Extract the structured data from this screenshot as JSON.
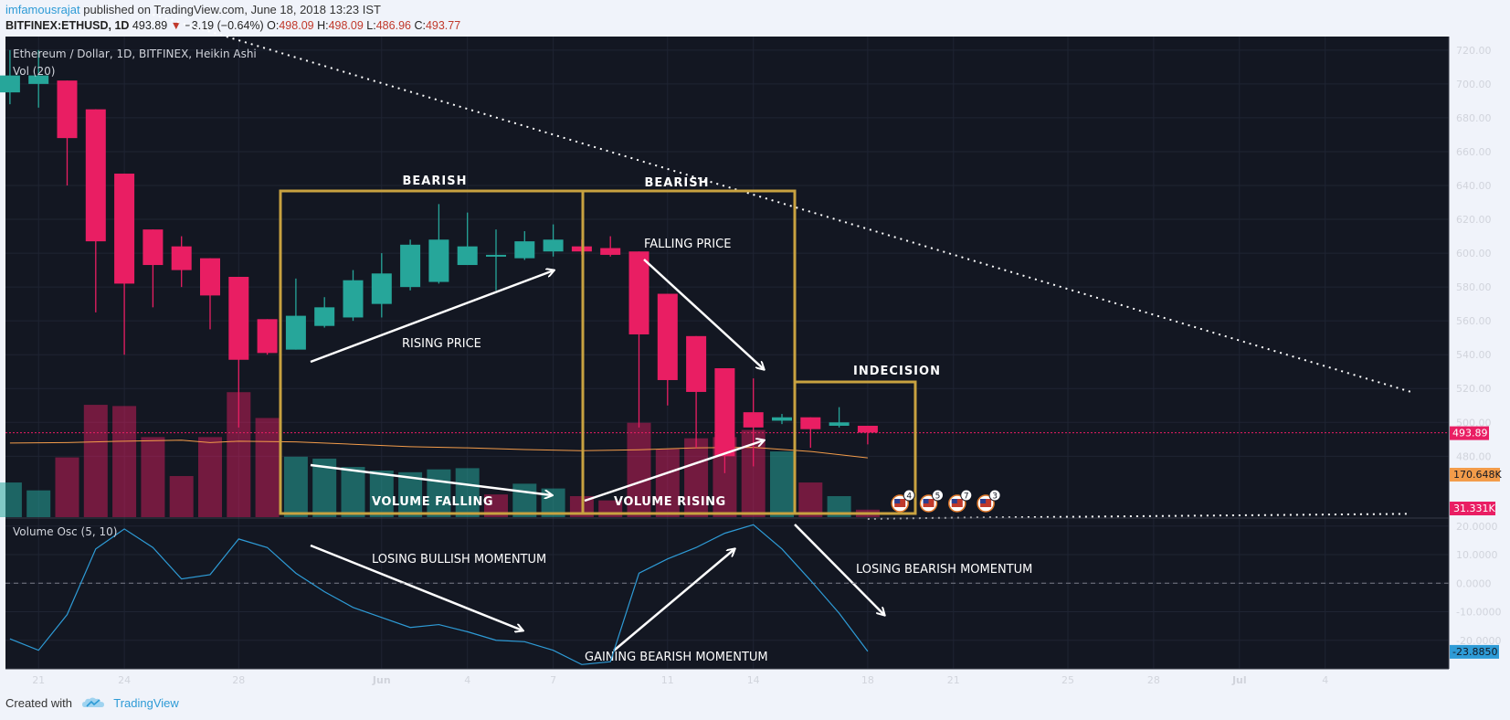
{
  "header": {
    "author": "imfamousrajat",
    "published": "published on TradingView.com, June 18, 2018 13:23 IST",
    "symbol": "BITFINEX:ETHUSD, 1D",
    "last": "493.89",
    "change_icon": "down-triangle-icon",
    "change": "−3.19 (−0.64%)",
    "o_label": "O:",
    "o": "498.09",
    "h_label": "H:",
    "h": "498.09",
    "l_label": "L:",
    "l": "486.96",
    "c_label": "C:",
    "c": "493.77"
  },
  "footer": {
    "created_with": "Created with",
    "brand": "TradingView",
    "logo_icon": "tradingview-cloud-icon"
  },
  "colors": {
    "background": "#131722",
    "bull": "#26a69a",
    "bear": "#e91e63",
    "box": "#c8a240",
    "osc_line": "#2e9bd6",
    "vol_ma": "#f39c4a",
    "price_line": "#e91e63"
  },
  "chart_data": [
    {
      "type": "candlestick",
      "title": "Ethereum / Dollar, 1D, BITFINEX, Heikin Ashi",
      "ylim": [
        444,
        728
      ],
      "y_ticks": [
        "720.00",
        "700.00",
        "680.00",
        "660.00",
        "640.00",
        "620.00",
        "600.00",
        "580.00",
        "560.00",
        "540.00",
        "520.00",
        "500.00",
        "480.00"
      ],
      "x_tick_labels": [
        "21",
        "24",
        "28",
        "Jun",
        "4",
        "7",
        "11",
        "14",
        "18",
        "21",
        "25",
        "28",
        "Jul",
        "4"
      ],
      "x_tick_days": [
        -11,
        -8,
        -4,
        1,
        4,
        7,
        11,
        14,
        18,
        21,
        25,
        28,
        31,
        34
      ],
      "candles": [
        {
          "d": -12,
          "o": 695,
          "h": 720,
          "l": 688,
          "c": 705
        },
        {
          "d": -11,
          "o": 700,
          "h": 720,
          "l": 686,
          "c": 705
        },
        {
          "d": -10,
          "o": 702,
          "h": 702,
          "l": 640,
          "c": 668
        },
        {
          "d": -9,
          "o": 685,
          "h": 685,
          "l": 565,
          "c": 607
        },
        {
          "d": -8,
          "o": 647,
          "h": 647,
          "l": 540,
          "c": 582
        },
        {
          "d": -7,
          "o": 614,
          "h": 614,
          "l": 568,
          "c": 593
        },
        {
          "d": -6,
          "o": 604,
          "h": 610,
          "l": 580,
          "c": 590
        },
        {
          "d": -5,
          "o": 597,
          "h": 597,
          "l": 555,
          "c": 575
        },
        {
          "d": -4,
          "o": 586,
          "h": 586,
          "l": 497,
          "c": 537
        },
        {
          "d": -3,
          "o": 561,
          "h": 561,
          "l": 540,
          "c": 541
        },
        {
          "d": -2,
          "o": 543,
          "h": 585,
          "l": 543,
          "c": 563
        },
        {
          "d": -1,
          "o": 557,
          "h": 574,
          "l": 556,
          "c": 568
        },
        {
          "d": 0,
          "o": 562,
          "h": 590,
          "l": 560,
          "c": 584
        },
        {
          "d": 1,
          "o": 570,
          "h": 600,
          "l": 562,
          "c": 588
        },
        {
          "d": 2,
          "o": 580,
          "h": 608,
          "l": 578,
          "c": 605
        },
        {
          "d": 3,
          "o": 583,
          "h": 629,
          "l": 582,
          "c": 608
        },
        {
          "d": 4,
          "o": 593,
          "h": 624,
          "l": 593,
          "c": 604
        },
        {
          "d": 5,
          "o": 599,
          "h": 614,
          "l": 578,
          "c": 599
        },
        {
          "d": 6,
          "o": 597,
          "h": 613,
          "l": 596,
          "c": 607
        },
        {
          "d": 7,
          "o": 601,
          "h": 617,
          "l": 598,
          "c": 608
        },
        {
          "d": 8,
          "o": 604,
          "h": 608,
          "l": 599,
          "c": 601
        },
        {
          "d": 9,
          "o": 603,
          "h": 610,
          "l": 598,
          "c": 599
        },
        {
          "d": 10,
          "o": 601,
          "h": 601,
          "l": 497,
          "c": 552
        },
        {
          "d": 11,
          "o": 576,
          "h": 576,
          "l": 510,
          "c": 525
        },
        {
          "d": 12,
          "o": 551,
          "h": 551,
          "l": 485,
          "c": 518
        },
        {
          "d": 13,
          "o": 532,
          "h": 532,
          "l": 470,
          "c": 480
        },
        {
          "d": 14,
          "o": 506,
          "h": 526,
          "l": 474,
          "c": 497
        },
        {
          "d": 15,
          "o": 501,
          "h": 505,
          "l": 499,
          "c": 503
        },
        {
          "d": 16,
          "o": 503,
          "h": 503,
          "l": 485,
          "c": 496
        },
        {
          "d": 17,
          "o": 498,
          "h": 509,
          "l": 497,
          "c": 500
        },
        {
          "d": 18,
          "o": 498,
          "h": 498,
          "l": 487,
          "c": 494
        }
      ],
      "last_price": "493.89",
      "last_price_value": 493.89,
      "trendline": {
        "from": {
          "d": -7,
          "v": 741
        },
        "to": {
          "d": 37,
          "v": 518
        }
      },
      "trendline_lower": {
        "from": {
          "d": 18,
          "v": -6
        },
        "to": {
          "d": 37,
          "v": 14
        }
      },
      "volume_label": "Vol (20)",
      "volume_ylim": [
        0,
        520
      ],
      "volume": [
        {
          "d": -12,
          "v": 145,
          "up": true
        },
        {
          "d": -11,
          "v": 112,
          "up": true
        },
        {
          "d": -10,
          "v": 250,
          "up": false
        },
        {
          "d": -9,
          "v": 470,
          "up": false
        },
        {
          "d": -8,
          "v": 465,
          "up": false
        },
        {
          "d": -7,
          "v": 335,
          "up": false
        },
        {
          "d": -6,
          "v": 172,
          "up": false
        },
        {
          "d": -5,
          "v": 335,
          "up": false
        },
        {
          "d": -4,
          "v": 523,
          "up": false
        },
        {
          "d": -3,
          "v": 415,
          "up": false
        },
        {
          "d": -2,
          "v": 253,
          "up": true
        },
        {
          "d": -1,
          "v": 245,
          "up": true
        },
        {
          "d": 0,
          "v": 210,
          "up": true
        },
        {
          "d": 1,
          "v": 195,
          "up": true
        },
        {
          "d": 2,
          "v": 188,
          "up": true
        },
        {
          "d": 3,
          "v": 200,
          "up": true
        },
        {
          "d": 4,
          "v": 205,
          "up": true
        },
        {
          "d": 5,
          "v": 95,
          "up": false
        },
        {
          "d": 6,
          "v": 140,
          "up": true
        },
        {
          "d": 7,
          "v": 120,
          "up": true
        },
        {
          "d": 8,
          "v": 88,
          "up": false
        },
        {
          "d": 9,
          "v": 70,
          "up": false
        },
        {
          "d": 10,
          "v": 395,
          "up": false
        },
        {
          "d": 11,
          "v": 285,
          "up": false
        },
        {
          "d": 12,
          "v": 330,
          "up": false
        },
        {
          "d": 13,
          "v": 335,
          "up": false
        },
        {
          "d": 14,
          "v": 365,
          "up": false
        },
        {
          "d": 15,
          "v": 275,
          "up": true
        },
        {
          "d": 16,
          "v": 145,
          "up": false
        },
        {
          "d": 17,
          "v": 88,
          "up": true
        },
        {
          "d": 18,
          "v": 31.331,
          "up": false
        }
      ],
      "volume_ma": [
        {
          "d": -12,
          "v": 310
        },
        {
          "d": -10,
          "v": 312
        },
        {
          "d": -8,
          "v": 318
        },
        {
          "d": -6,
          "v": 322
        },
        {
          "d": -5,
          "v": 312
        },
        {
          "d": -4,
          "v": 318
        },
        {
          "d": -2,
          "v": 315
        },
        {
          "d": 0,
          "v": 305
        },
        {
          "d": 2,
          "v": 295
        },
        {
          "d": 4,
          "v": 290
        },
        {
          "d": 6,
          "v": 283
        },
        {
          "d": 8,
          "v": 278
        },
        {
          "d": 10,
          "v": 282
        },
        {
          "d": 12,
          "v": 290
        },
        {
          "d": 14,
          "v": 292
        },
        {
          "d": 16,
          "v": 275
        },
        {
          "d": 18,
          "v": 248
        }
      ],
      "volume_badges": [
        "170.648K",
        "31.331K"
      ],
      "events": [
        {
          "d": 19,
          "label": "4"
        },
        {
          "d": 20,
          "label": "5"
        },
        {
          "d": 21,
          "label": "7"
        },
        {
          "d": 22,
          "label": "3"
        }
      ],
      "event_icon": "us-flag-icon",
      "annotations": {
        "bearish_1": "BEARISH",
        "bearish_2": "BEARISH",
        "indecision": "INDECISION",
        "rising_price": "RISING PRICE",
        "falling_price": "FALLING PRICE",
        "volume_falling": "VOLUME FALLING",
        "volume_rising": "VOLUME RISING"
      }
    },
    {
      "type": "line",
      "title": "Volume Osc (5, 10)",
      "ylim": [
        -30,
        22.5
      ],
      "y_ticks": [
        "20.0000",
        "10.0000",
        "0.0000",
        "-10.0000",
        "-20.0000"
      ],
      "series": [
        {
          "values": [
            {
              "d": -12,
              "v": -19.5
            },
            {
              "d": -11,
              "v": -23.5
            },
            {
              "d": -10,
              "v": -11
            },
            {
              "d": -9,
              "v": 12
            },
            {
              "d": -8,
              "v": 19
            },
            {
              "d": -7,
              "v": 12.5
            },
            {
              "d": -6,
              "v": 1.5
            },
            {
              "d": -5,
              "v": 3
            },
            {
              "d": -4,
              "v": 15.5
            },
            {
              "d": -3,
              "v": 12.5
            },
            {
              "d": -2,
              "v": 3.5
            },
            {
              "d": -1,
              "v": -3
            },
            {
              "d": 0,
              "v": -8.5
            },
            {
              "d": 1,
              "v": -12
            },
            {
              "d": 2,
              "v": -15.5
            },
            {
              "d": 3,
              "v": -14.5
            },
            {
              "d": 4,
              "v": -17
            },
            {
              "d": 5,
              "v": -20
            },
            {
              "d": 6,
              "v": -20.5
            },
            {
              "d": 7,
              "v": -23.5
            },
            {
              "d": 8,
              "v": -28.5
            },
            {
              "d": 9,
              "v": -27.5
            },
            {
              "d": 10,
              "v": 3.5
            },
            {
              "d": 11,
              "v": 8.5
            },
            {
              "d": 12,
              "v": 12.5
            },
            {
              "d": 13,
              "v": 17.5
            },
            {
              "d": 14,
              "v": 20.5
            },
            {
              "d": 15,
              "v": 12
            },
            {
              "d": 16,
              "v": 1
            },
            {
              "d": 17,
              "v": -10.5
            },
            {
              "d": 18,
              "v": -23.885
            }
          ]
        }
      ],
      "last_value": "-23.8850",
      "annotations": {
        "losing_bullish": "LOSING BULLISH MOMENTUM",
        "gaining_bearish": "GAINING BEARISH MOMENTUM",
        "losing_bearish": "LOSING BEARISH MOMENTUM"
      }
    }
  ]
}
